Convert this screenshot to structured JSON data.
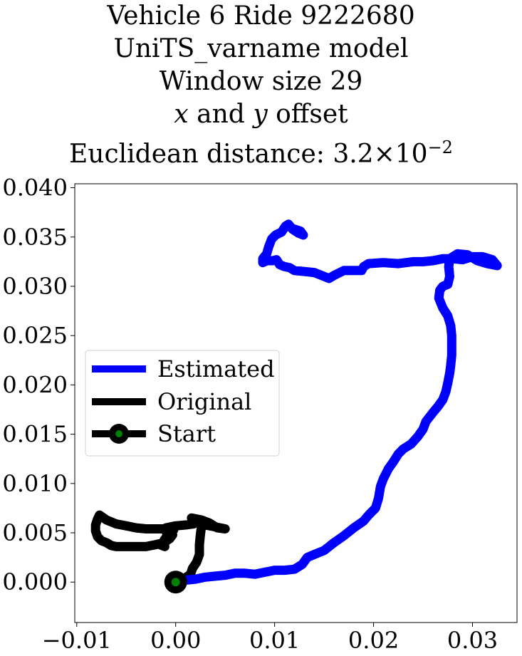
{
  "chart_data": {
    "type": "line",
    "title_lines": [
      "Vehicle 6 Ride 9222680",
      "UniTS_varname model",
      "Window size 29",
      "x and y offset",
      "Euclidean distance: 3.2"
    ],
    "title_math": {
      "x_var": "x",
      "y_var": "y",
      "joiner": "and",
      "offset_word": "offset",
      "distance_prefix": "Euclidean distance: 3.2",
      "times": "×",
      "base": "10",
      "exponent": "−2"
    },
    "xlim": [
      -0.0102,
      0.0345
    ],
    "ylim": [
      -0.0041,
      0.0404
    ],
    "xticks": [
      -0.01,
      0.0,
      0.01,
      0.02,
      0.03
    ],
    "xtick_labels": [
      "−0.01",
      "0.00",
      "0.01",
      "0.02",
      "0.03"
    ],
    "yticks": [
      0.0,
      0.005,
      0.01,
      0.015,
      0.02,
      0.025,
      0.03,
      0.035,
      0.04
    ],
    "ytick_labels": [
      "0.000",
      "0.005",
      "0.010",
      "0.015",
      "0.020",
      "0.025",
      "0.030",
      "0.035",
      "0.040"
    ],
    "grid": false,
    "legend_position": "center-left",
    "series": [
      {
        "name": "Estimated",
        "color": "#0000ff",
        "points": [
          [
            0.0,
            0.0
          ],
          [
            0.001,
            0.0002
          ],
          [
            0.002,
            0.0003
          ],
          [
            0.003,
            0.0005
          ],
          [
            0.004,
            0.0006
          ],
          [
            0.005,
            0.0007
          ],
          [
            0.006,
            0.0009
          ],
          [
            0.007,
            0.0009
          ],
          [
            0.008,
            0.0008
          ],
          [
            0.009,
            0.001
          ],
          [
            0.01,
            0.0012
          ],
          [
            0.011,
            0.0012
          ],
          [
            0.012,
            0.0013
          ],
          [
            0.0128,
            0.0018
          ],
          [
            0.0133,
            0.0025
          ],
          [
            0.014,
            0.0028
          ],
          [
            0.015,
            0.0032
          ],
          [
            0.016,
            0.004
          ],
          [
            0.017,
            0.0047
          ],
          [
            0.018,
            0.0055
          ],
          [
            0.019,
            0.0062
          ],
          [
            0.0195,
            0.0068
          ],
          [
            0.0202,
            0.0075
          ],
          [
            0.0205,
            0.0085
          ],
          [
            0.0207,
            0.0097
          ],
          [
            0.021,
            0.0105
          ],
          [
            0.0215,
            0.0115
          ],
          [
            0.022,
            0.0122
          ],
          [
            0.0225,
            0.013
          ],
          [
            0.023,
            0.0135
          ],
          [
            0.0238,
            0.014
          ],
          [
            0.0245,
            0.0148
          ],
          [
            0.025,
            0.0155
          ],
          [
            0.0253,
            0.0163
          ],
          [
            0.026,
            0.0172
          ],
          [
            0.0265,
            0.0178
          ],
          [
            0.027,
            0.0185
          ],
          [
            0.0273,
            0.0193
          ],
          [
            0.0275,
            0.0202
          ],
          [
            0.0277,
            0.0212
          ],
          [
            0.0278,
            0.022
          ],
          [
            0.0279,
            0.023
          ],
          [
            0.0279,
            0.024
          ],
          [
            0.0279,
            0.025
          ],
          [
            0.0278,
            0.026
          ],
          [
            0.0275,
            0.027
          ],
          [
            0.027,
            0.0278
          ],
          [
            0.0266,
            0.0288
          ],
          [
            0.0267,
            0.0296
          ],
          [
            0.027,
            0.03
          ],
          [
            0.0275,
            0.0302
          ],
          [
            0.0277,
            0.031
          ],
          [
            0.0276,
            0.032
          ],
          [
            0.0277,
            0.0328
          ],
          [
            0.0285,
            0.0333
          ],
          [
            0.0295,
            0.0332
          ],
          [
            0.0305,
            0.0326
          ],
          [
            0.0315,
            0.0323
          ],
          [
            0.0325,
            0.0321
          ],
          [
            0.032,
            0.0327
          ],
          [
            0.031,
            0.033
          ],
          [
            0.03,
            0.033
          ],
          [
            0.029,
            0.0327
          ],
          [
            0.028,
            0.0328
          ],
          [
            0.027,
            0.0328
          ],
          [
            0.026,
            0.0326
          ],
          [
            0.025,
            0.0325
          ],
          [
            0.024,
            0.0325
          ],
          [
            0.0225,
            0.0323
          ],
          [
            0.021,
            0.0324
          ],
          [
            0.0195,
            0.0323
          ],
          [
            0.019,
            0.032
          ],
          [
            0.0188,
            0.0316
          ],
          [
            0.0178,
            0.0316
          ],
          [
            0.017,
            0.0316
          ],
          [
            0.016,
            0.0311
          ],
          [
            0.0155,
            0.0308
          ],
          [
            0.015,
            0.031
          ],
          [
            0.014,
            0.0314
          ],
          [
            0.013,
            0.0315
          ],
          [
            0.012,
            0.0316
          ],
          [
            0.0115,
            0.0319
          ],
          [
            0.011,
            0.032
          ],
          [
            0.0105,
            0.0322
          ],
          [
            0.0102,
            0.0327
          ],
          [
            0.0098,
            0.0326
          ],
          [
            0.0092,
            0.0326
          ],
          [
            0.0088,
            0.0324
          ],
          [
            0.0088,
            0.0328
          ],
          [
            0.0092,
            0.0333
          ],
          [
            0.0094,
            0.034
          ],
          [
            0.0097,
            0.0348
          ],
          [
            0.0101,
            0.0352
          ],
          [
            0.0107,
            0.0355
          ],
          [
            0.0111,
            0.0361
          ],
          [
            0.0114,
            0.0363
          ],
          [
            0.0118,
            0.0358
          ],
          [
            0.0124,
            0.0354
          ],
          [
            0.0129,
            0.0352
          ],
          [
            0.0126,
            0.0356
          ],
          [
            0.012,
            0.0358
          ]
        ]
      },
      {
        "name": "Original",
        "color": "#000000",
        "points": [
          [
            0.0,
            0.0
          ],
          [
            0.0008,
            0.0003
          ],
          [
            0.0015,
            0.0008
          ],
          [
            0.0017,
            0.0014
          ],
          [
            0.0021,
            0.002
          ],
          [
            0.0024,
            0.0028
          ],
          [
            0.0024,
            0.0038
          ],
          [
            0.0025,
            0.0048
          ],
          [
            0.0026,
            0.0056
          ],
          [
            0.003,
            0.0058
          ],
          [
            0.004,
            0.0056
          ],
          [
            0.005,
            0.0054
          ],
          [
            0.0042,
            0.0055
          ],
          [
            0.0034,
            0.006
          ],
          [
            0.0026,
            0.0063
          ],
          [
            0.0016,
            0.0065
          ],
          [
            0.0018,
            0.0059
          ],
          [
            0.001,
            0.0058
          ],
          [
            0.0,
            0.0057
          ],
          [
            -0.001,
            0.0055
          ],
          [
            -0.0002,
            0.0053
          ],
          [
            -0.0008,
            0.0049
          ],
          [
            -0.0012,
            0.0054
          ],
          [
            -0.002,
            0.0054
          ],
          [
            -0.003,
            0.0054
          ],
          [
            -0.004,
            0.0055
          ],
          [
            -0.005,
            0.0057
          ],
          [
            -0.006,
            0.0059
          ],
          [
            -0.007,
            0.0063
          ],
          [
            -0.0077,
            0.0068
          ],
          [
            -0.0079,
            0.0064
          ],
          [
            -0.0081,
            0.0058
          ],
          [
            -0.0081,
            0.0052
          ],
          [
            -0.0079,
            0.0046
          ],
          [
            -0.0075,
            0.0042
          ],
          [
            -0.007,
            0.004
          ],
          [
            -0.0065,
            0.0037
          ],
          [
            -0.006,
            0.0036
          ],
          [
            -0.005,
            0.0036
          ],
          [
            -0.004,
            0.0036
          ],
          [
            -0.003,
            0.0036
          ],
          [
            -0.0025,
            0.0037
          ],
          [
            -0.002,
            0.0038
          ],
          [
            -0.0012,
            0.004
          ],
          [
            -0.0006,
            0.0044
          ],
          [
            -0.0003,
            0.0048
          ],
          [
            -0.0006,
            0.0052
          ],
          [
            -0.0008,
            0.0048
          ],
          [
            -0.0012,
            0.0042
          ],
          [
            -0.0011,
            0.0036
          ],
          [
            -0.0016,
            0.0038
          ]
        ]
      }
    ],
    "start": {
      "name": "Start",
      "x": 0.0,
      "y": 0.0,
      "outer_color": "#000000",
      "inner_color": "#008000"
    }
  }
}
